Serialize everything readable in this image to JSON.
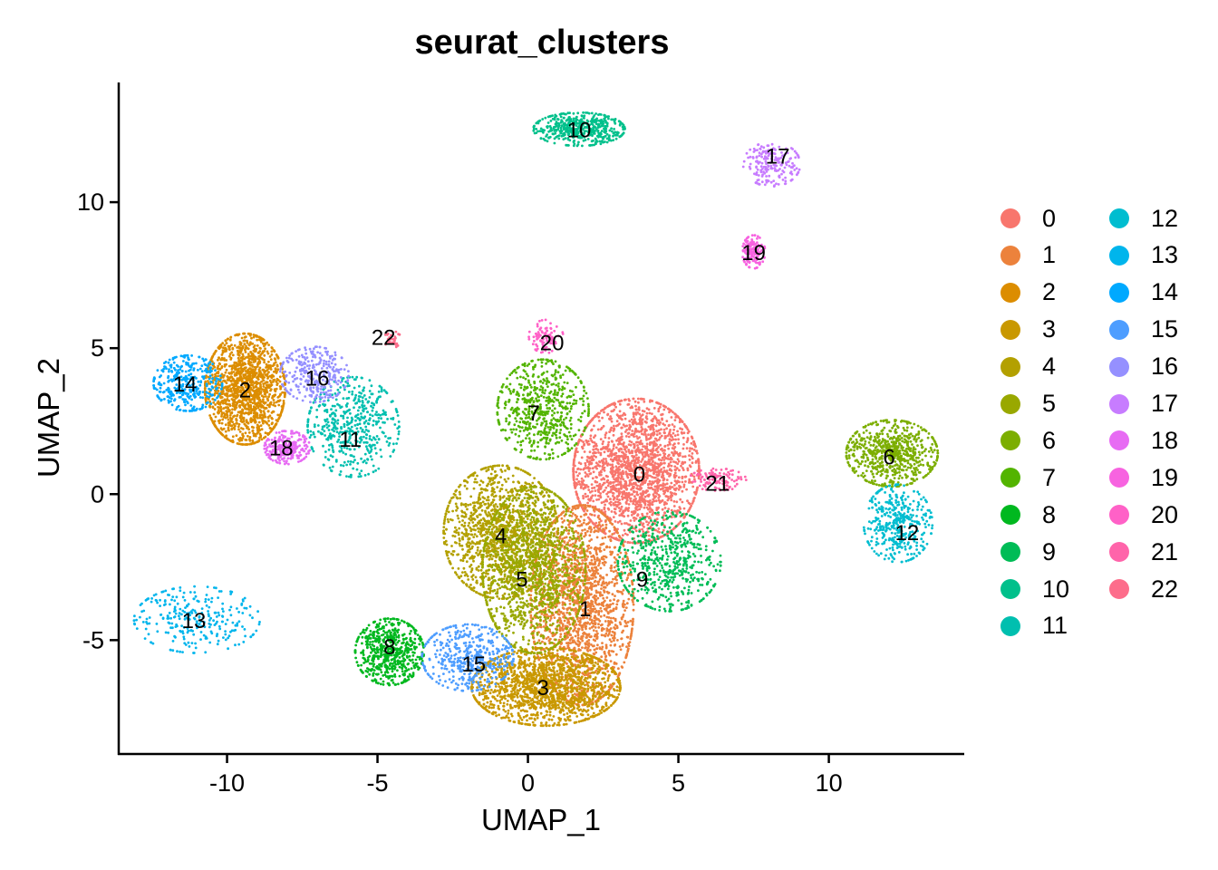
{
  "chart_data": {
    "type": "scatter",
    "title": "seurat_clusters",
    "xlabel": "UMAP_1",
    "ylabel": "UMAP_2",
    "xlim": [
      -13.6,
      14.5
    ],
    "ylim": [
      -8.9,
      14.1
    ],
    "xticks": [
      -10,
      -5,
      0,
      5,
      10
    ],
    "xtick_labels": [
      "-10",
      "-5",
      "0",
      "5",
      "10"
    ],
    "yticks": [
      -5,
      0,
      5,
      10
    ],
    "ytick_labels": [
      "-5",
      "0",
      "5",
      "10"
    ],
    "grid": false,
    "legend_position": "right",
    "clusters": [
      {
        "id": "0",
        "color": "#F8766D",
        "label_x": 3.7,
        "label_y": 0.7,
        "cx": 3.6,
        "cy": 0.8,
        "sx": 1.1,
        "sy": 1.3,
        "n": 2000
      },
      {
        "id": "1",
        "color": "#EC823C",
        "label_x": 1.9,
        "label_y": -3.9,
        "cx": 1.8,
        "cy": -3.8,
        "sx": 0.9,
        "sy": 1.8,
        "n": 1800
      },
      {
        "id": "2",
        "color": "#DC8D00",
        "label_x": -9.4,
        "label_y": 3.6,
        "cx": -9.4,
        "cy": 3.6,
        "sx": 0.7,
        "sy": 1.0,
        "n": 1500
      },
      {
        "id": "3",
        "color": "#C99800",
        "label_x": 0.5,
        "label_y": -6.6,
        "cx": 0.6,
        "cy": -6.6,
        "sx": 1.3,
        "sy": 0.7,
        "n": 1600
      },
      {
        "id": "4",
        "color": "#B3A000",
        "label_x": -0.9,
        "label_y": -1.4,
        "cx": -0.9,
        "cy": -1.3,
        "sx": 1.0,
        "sy": 1.2,
        "n": 1300
      },
      {
        "id": "5",
        "color": "#99A800",
        "label_x": -0.2,
        "label_y": -2.9,
        "cx": 0.2,
        "cy": -2.6,
        "sx": 0.9,
        "sy": 1.5,
        "n": 1300
      },
      {
        "id": "6",
        "color": "#7CAE00",
        "label_x": 12.0,
        "label_y": 1.3,
        "cx": 12.1,
        "cy": 1.4,
        "sx": 0.8,
        "sy": 0.6,
        "n": 700
      },
      {
        "id": "7",
        "color": "#53B400",
        "label_x": 0.2,
        "label_y": 2.8,
        "cx": 0.5,
        "cy": 2.9,
        "sx": 0.8,
        "sy": 0.9,
        "n": 600
      },
      {
        "id": "8",
        "color": "#00B81F",
        "label_x": -4.6,
        "label_y": -5.2,
        "cx": -4.6,
        "cy": -5.4,
        "sx": 0.6,
        "sy": 0.6,
        "n": 600
      },
      {
        "id": "9",
        "color": "#00BC56",
        "label_x": 3.8,
        "label_y": -2.9,
        "cx": 4.7,
        "cy": -2.3,
        "sx": 0.9,
        "sy": 0.9,
        "n": 600
      },
      {
        "id": "10",
        "color": "#00C08B",
        "label_x": 1.7,
        "label_y": 12.5,
        "cx": 1.7,
        "cy": 12.5,
        "sx": 0.8,
        "sy": 0.3,
        "n": 500
      },
      {
        "id": "11",
        "color": "#00BFAF",
        "label_x": -5.9,
        "label_y": 1.9,
        "cx": -5.8,
        "cy": 2.3,
        "sx": 0.8,
        "sy": 0.9,
        "n": 500
      },
      {
        "id": "12",
        "color": "#00BDD0",
        "label_x": 12.6,
        "label_y": -1.3,
        "cx": 12.3,
        "cy": -1.0,
        "sx": 0.6,
        "sy": 0.7,
        "n": 400
      },
      {
        "id": "13",
        "color": "#00B5EC",
        "label_x": -11.1,
        "label_y": -4.3,
        "cx": -11.0,
        "cy": -4.3,
        "sx": 1.1,
        "sy": 0.6,
        "n": 280
      },
      {
        "id": "14",
        "color": "#00A9FF",
        "label_x": -11.4,
        "label_y": 3.8,
        "cx": -11.3,
        "cy": 3.8,
        "sx": 0.6,
        "sy": 0.5,
        "n": 350
      },
      {
        "id": "15",
        "color": "#4D9DFF",
        "label_x": -1.8,
        "label_y": -5.8,
        "cx": -2.0,
        "cy": -5.6,
        "sx": 0.8,
        "sy": 0.6,
        "n": 450
      },
      {
        "id": "16",
        "color": "#9590FF",
        "label_x": -7.0,
        "label_y": 4.0,
        "cx": -7.1,
        "cy": 4.1,
        "sx": 0.6,
        "sy": 0.5,
        "n": 300
      },
      {
        "id": "17",
        "color": "#C77CFF",
        "label_x": 8.3,
        "label_y": 11.6,
        "cx": 8.1,
        "cy": 11.3,
        "sx": 0.5,
        "sy": 0.4,
        "n": 200
      },
      {
        "id": "18",
        "color": "#E76BF3",
        "label_x": -8.2,
        "label_y": 1.6,
        "cx": -8.0,
        "cy": 1.6,
        "sx": 0.4,
        "sy": 0.3,
        "n": 250
      },
      {
        "id": "19",
        "color": "#F763E0",
        "label_x": 7.5,
        "label_y": 8.3,
        "cx": 7.5,
        "cy": 8.3,
        "sx": 0.2,
        "sy": 0.3,
        "n": 130
      },
      {
        "id": "20",
        "color": "#FF61C7",
        "label_x": 0.8,
        "label_y": 5.2,
        "cx": 0.6,
        "cy": 5.4,
        "sx": 0.3,
        "sy": 0.3,
        "n": 90
      },
      {
        "id": "21",
        "color": "#FF64AA",
        "label_x": 6.3,
        "label_y": 0.4,
        "cx": 6.3,
        "cy": 0.5,
        "sx": 0.5,
        "sy": 0.2,
        "n": 110
      },
      {
        "id": "22",
        "color": "#FD6D8B",
        "label_x": -4.8,
        "label_y": 5.4,
        "cx": -4.5,
        "cy": 5.3,
        "sx": 0.15,
        "sy": 0.15,
        "n": 30
      }
    ]
  }
}
